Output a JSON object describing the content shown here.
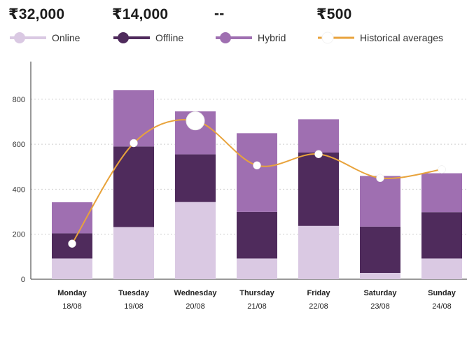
{
  "summary": [
    {
      "value": "₹32,000",
      "legend": "Online",
      "color": "#dac9e3",
      "kind": "bar"
    },
    {
      "value": "₹14,000",
      "legend": "Offline",
      "color": "#4f2b5c",
      "kind": "bar"
    },
    {
      "value": "--",
      "legend": "Hybrid",
      "color": "#9f6fb1",
      "kind": "bar"
    },
    {
      "value": "₹500",
      "legend": "Historical averages",
      "color": "#e8a33c",
      "kind": "line"
    }
  ],
  "chart_data": {
    "type": "bar",
    "stacked": true,
    "categories": [
      "Monday",
      "Tuesday",
      "Wednesday",
      "Thursday",
      "Friday",
      "Saturday",
      "Sunday"
    ],
    "dates": [
      "18/08",
      "19/08",
      "20/08",
      "21/08",
      "22/08",
      "23/08",
      "24/08"
    ],
    "series": [
      {
        "name": "Online",
        "color": "#dac9e3",
        "values": [
          92,
          232,
          343,
          92,
          237,
          28,
          92
        ]
      },
      {
        "name": "Offline",
        "color": "#4f2b5c",
        "values": [
          112,
          358,
          212,
          207,
          326,
          206,
          206
        ]
      },
      {
        "name": "Hybrid",
        "color": "#9f6fb1",
        "values": [
          138,
          250,
          191,
          350,
          148,
          225,
          173
        ]
      }
    ],
    "line": {
      "name": "Historical averages",
      "color": "#e8a33c",
      "values": [
        158,
        605,
        704,
        506,
        556,
        450,
        488
      ],
      "highlight_index": 2
    },
    "yticks": [
      0,
      200,
      400,
      600,
      800
    ],
    "ylim": [
      0,
      900
    ],
    "grid": true
  }
}
